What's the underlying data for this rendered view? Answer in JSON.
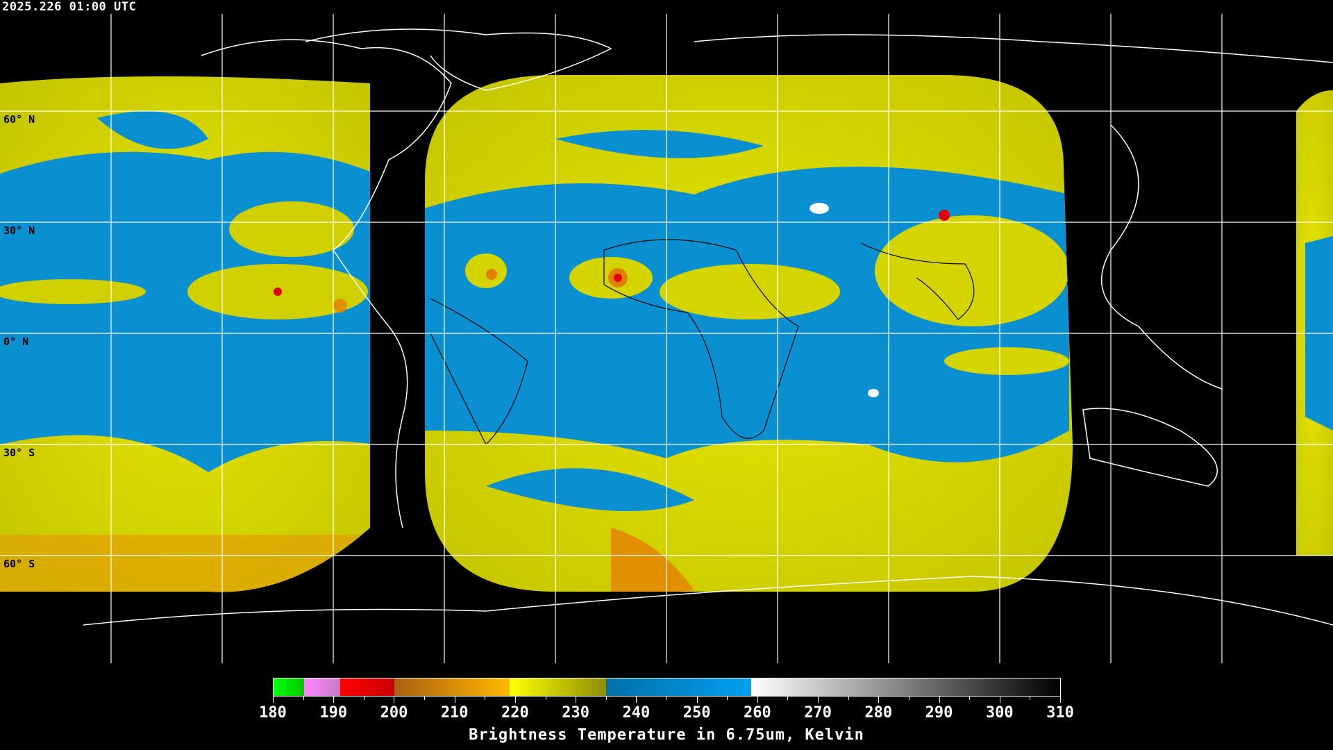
{
  "timestamp": "2025.226 01:00 UTC",
  "latitude_labels": [
    "60° N",
    "30° N",
    "0° N",
    "30° S",
    "60° S"
  ],
  "map": {
    "background": "#000000",
    "gridline_color": "#ffffff",
    "coastline_color": "#ffffff",
    "imagery_colors": {
      "dry": "#d8d800",
      "moist": "#0a8fd0",
      "cold": "#e0a000",
      "very_cold": "#e00000"
    }
  },
  "colorbar": {
    "title": "Brightness Temperature in 6.75um, Kelvin",
    "min": 180,
    "max": 310,
    "tick_labels": [
      "180",
      "190",
      "200",
      "210",
      "220",
      "230",
      "240",
      "250",
      "260",
      "270",
      "280",
      "290",
      "300",
      "310"
    ],
    "segments": [
      {
        "from": 180,
        "to": 185,
        "colors": [
          "#00ff00",
          "#00c800"
        ]
      },
      {
        "from": 185,
        "to": 191,
        "colors": [
          "#ff88ff",
          "#c878c8"
        ]
      },
      {
        "from": 191,
        "to": 200,
        "colors": [
          "#ff0000",
          "#c80000"
        ]
      },
      {
        "from": 200,
        "to": 219,
        "colors": [
          "#a86010",
          "#ffb800"
        ]
      },
      {
        "from": 219,
        "to": 235,
        "colors": [
          "#ffff00",
          "#8c8c00"
        ]
      },
      {
        "from": 235,
        "to": 259,
        "colors": [
          "#0070a8",
          "#00a0f0"
        ]
      },
      {
        "from": 259,
        "to": 310,
        "colors": [
          "#ffffff",
          "#000000"
        ]
      }
    ]
  }
}
